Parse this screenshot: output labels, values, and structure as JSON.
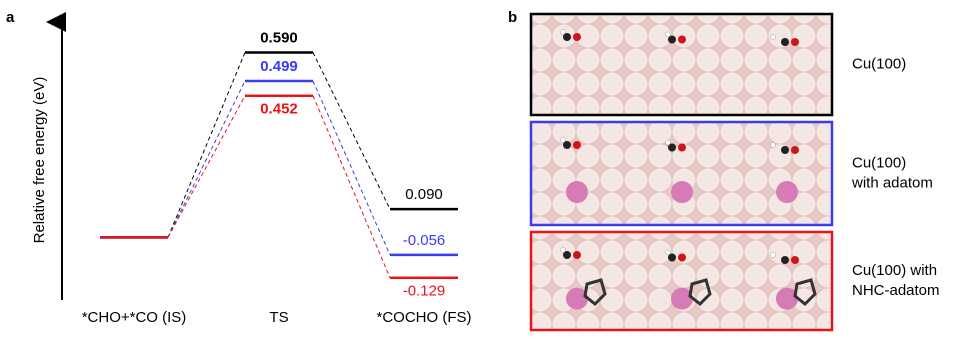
{
  "chart_data": {
    "type": "energy-profile",
    "panel_label": "a",
    "ylabel": "Relative free energy (eV)",
    "categories": [
      "*CHO+*CO (IS)",
      "TS",
      "*COCHO (FS)"
    ],
    "series": [
      {
        "color": "#000000",
        "values": [
          0,
          0.59,
          0.09
        ],
        "value_labels": [
          null,
          "0.590",
          "0.090"
        ]
      },
      {
        "color": "#3b3bef",
        "values": [
          0,
          0.499,
          -0.056
        ],
        "value_labels": [
          null,
          "0.499",
          "-0.056"
        ]
      },
      {
        "color": "#e8141c",
        "values": [
          0,
          0.452,
          -0.129
        ],
        "value_labels": [
          null,
          "0.452",
          "-0.129"
        ]
      }
    ],
    "ylim": [
      -0.2,
      0.7
    ]
  },
  "panel_b": {
    "label": "b",
    "rows": [
      {
        "color": "#000000",
        "label": [
          "Cu(100)"
        ]
      },
      {
        "color": "#3b3bef",
        "label": [
          "Cu(100)",
          "with adatom"
        ]
      },
      {
        "color": "#e8141c",
        "label": [
          "Cu(100) with",
          "NHC-adatom"
        ]
      }
    ]
  }
}
